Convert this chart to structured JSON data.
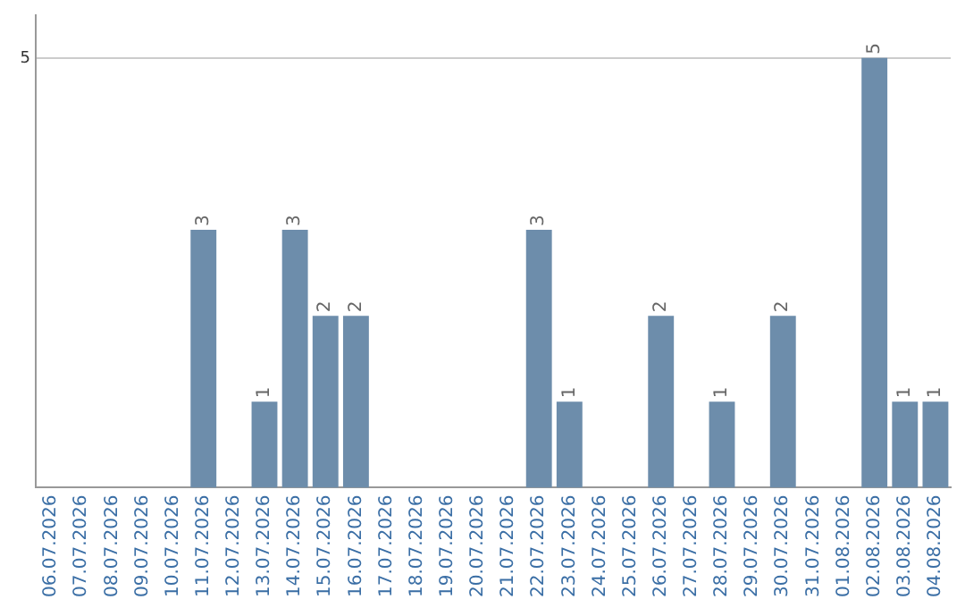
{
  "chart_data": {
    "type": "bar",
    "categories": [
      "06.07.2026",
      "07.07.2026",
      "08.07.2026",
      "09.07.2026",
      "10.07.2026",
      "11.07.2026",
      "12.07.2026",
      "13.07.2026",
      "14.07.2026",
      "15.07.2026",
      "16.07.2026",
      "17.07.2026",
      "18.07.2026",
      "19.07.2026",
      "20.07.2026",
      "21.07.2026",
      "22.07.2026",
      "23.07.2026",
      "24.07.2026",
      "25.07.2026",
      "26.07.2026",
      "27.07.2026",
      "28.07.2026",
      "29.07.2026",
      "30.07.2026",
      "31.07.2026",
      "01.08.2026",
      "02.08.2026",
      "03.08.2026",
      "04.08.2026"
    ],
    "values": [
      0,
      0,
      0,
      0,
      0,
      3,
      0,
      1,
      3,
      2,
      2,
      0,
      0,
      0,
      0,
      0,
      3,
      1,
      0,
      0,
      2,
      0,
      1,
      0,
      2,
      0,
      0,
      5,
      1,
      1
    ],
    "value_labels": [
      null,
      null,
      null,
      null,
      null,
      "3",
      null,
      "1",
      "3",
      "2",
      "2",
      null,
      null,
      null,
      null,
      null,
      "3",
      "1",
      null,
      null,
      "2",
      null,
      "1",
      null,
      "2",
      null,
      null,
      "5",
      "1",
      "1"
    ],
    "color": "#6d8dab",
    "ylim": [
      0,
      5.5
    ],
    "yticks": [
      5
    ],
    "grid": "y",
    "legend": false
  }
}
